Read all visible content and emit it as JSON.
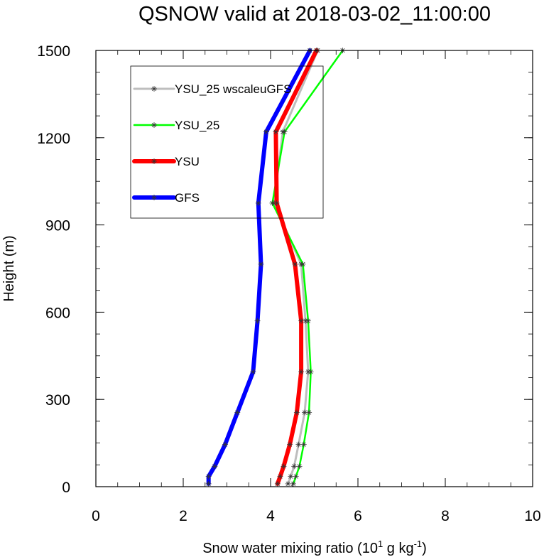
{
  "chart_data": {
    "type": "line",
    "title": "QSNOW valid at 2018-03-02_11:00:00",
    "xlabel": "Snow water mixing ratio (10",
    "xlabel_sup1": "1",
    "xlabel_mid": " g kg",
    "xlabel_sup2": "-1",
    "xlabel_end": ")",
    "ylabel": "Height (m)",
    "xlim": [
      0,
      10
    ],
    "ylim": [
      0,
      1500
    ],
    "xticks": [
      "0",
      "2",
      "4",
      "6",
      "8",
      "10"
    ],
    "yticks": [
      "0",
      "300",
      "600",
      "900",
      "1200",
      "1500"
    ],
    "legend_position": "upper-left",
    "series": [
      {
        "name": "YSU_25 wscaleuGFS",
        "color": "#bebebe",
        "markers": true,
        "points": [
          {
            "x": 4.4,
            "y": 10
          },
          {
            "x": 4.46,
            "y": 35
          },
          {
            "x": 4.54,
            "y": 70
          },
          {
            "x": 4.64,
            "y": 145
          },
          {
            "x": 4.78,
            "y": 255
          },
          {
            "x": 4.86,
            "y": 395
          },
          {
            "x": 4.8,
            "y": 570
          },
          {
            "x": 4.7,
            "y": 765
          },
          {
            "x": 4.08,
            "y": 975
          },
          {
            "x": 4.28,
            "y": 1220
          },
          {
            "x": 5.08,
            "y": 1500
          }
        ]
      },
      {
        "name": "YSU_25",
        "color": "#00ff00",
        "markers": true,
        "points": [
          {
            "x": 4.52,
            "y": 10
          },
          {
            "x": 4.58,
            "y": 35
          },
          {
            "x": 4.66,
            "y": 70
          },
          {
            "x": 4.76,
            "y": 145
          },
          {
            "x": 4.88,
            "y": 255
          },
          {
            "x": 4.92,
            "y": 395
          },
          {
            "x": 4.86,
            "y": 570
          },
          {
            "x": 4.74,
            "y": 765
          },
          {
            "x": 4.04,
            "y": 975
          },
          {
            "x": 4.32,
            "y": 1220
          },
          {
            "x": 5.65,
            "y": 1500
          }
        ]
      },
      {
        "name": "YSU",
        "color": "#ff0000",
        "markers": true,
        "points": [
          {
            "x": 4.16,
            "y": 10
          },
          {
            "x": 4.22,
            "y": 35
          },
          {
            "x": 4.3,
            "y": 70
          },
          {
            "x": 4.44,
            "y": 145
          },
          {
            "x": 4.6,
            "y": 255
          },
          {
            "x": 4.7,
            "y": 395
          },
          {
            "x": 4.7,
            "y": 570
          },
          {
            "x": 4.56,
            "y": 765
          },
          {
            "x": 4.14,
            "y": 975
          },
          {
            "x": 4.12,
            "y": 1220
          },
          {
            "x": 5.05,
            "y": 1500
          }
        ]
      },
      {
        "name": "GFS",
        "color": "#0000ff",
        "markers": true,
        "points": [
          {
            "x": 2.58,
            "y": 10
          },
          {
            "x": 2.58,
            "y": 35
          },
          {
            "x": 2.72,
            "y": 70
          },
          {
            "x": 2.96,
            "y": 145
          },
          {
            "x": 3.24,
            "y": 255
          },
          {
            "x": 3.6,
            "y": 395
          },
          {
            "x": 3.7,
            "y": 570
          },
          {
            "x": 3.78,
            "y": 765
          },
          {
            "x": 3.72,
            "y": 975
          },
          {
            "x": 3.9,
            "y": 1220
          },
          {
            "x": 4.9,
            "y": 1500
          }
        ]
      }
    ]
  }
}
